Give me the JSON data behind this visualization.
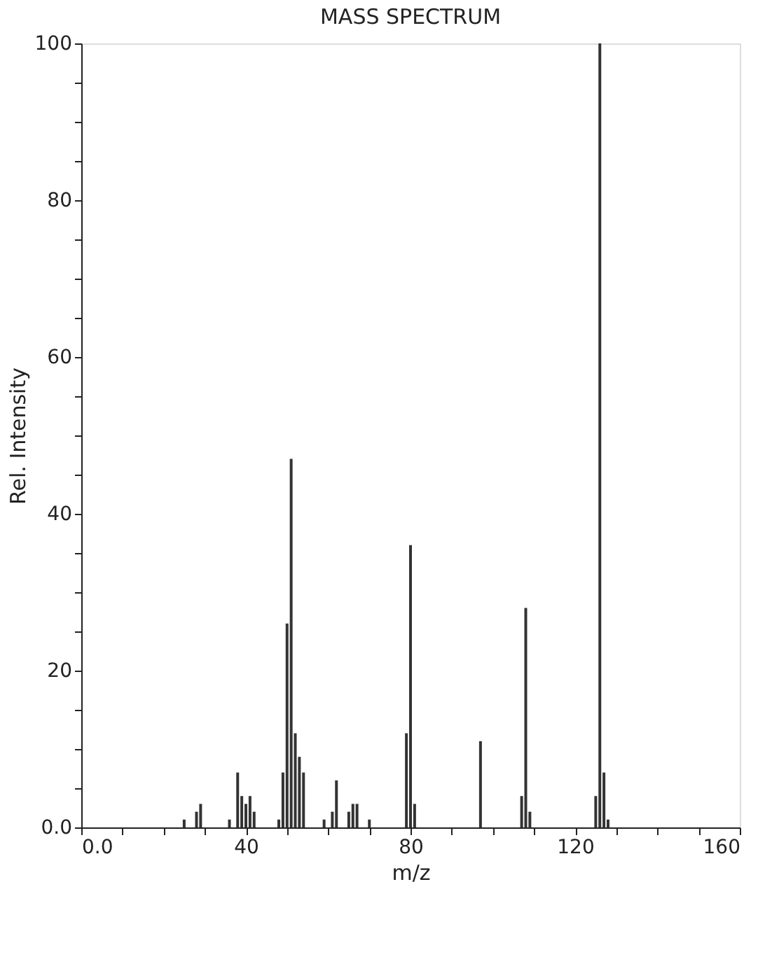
{
  "chart_data": {
    "type": "bar",
    "title": "MASS SPECTRUM",
    "xlabel": "m/z",
    "ylabel": "Rel. Intensity",
    "x": [
      25,
      28,
      29,
      36,
      38,
      39,
      40,
      41,
      42,
      48,
      49,
      50,
      51,
      52,
      53,
      54,
      59,
      61,
      62,
      65,
      66,
      67,
      70,
      79,
      80,
      81,
      97,
      107,
      108,
      109,
      125,
      126,
      127,
      128
    ],
    "series": [
      {
        "color": "#333333",
        "values": [
          1,
          2,
          3,
          1,
          7,
          4,
          3,
          4,
          2,
          1,
          7,
          26,
          47,
          12,
          9,
          7,
          1,
          2,
          6,
          2,
          3,
          3,
          1,
          12,
          36,
          3,
          11,
          4,
          28,
          2,
          4,
          100,
          7,
          1
        ]
      }
    ],
    "xlim": [
      0,
      160
    ],
    "xticks": [
      {
        "value": 0,
        "label": "0.0"
      },
      {
        "value": 10,
        "label": null
      },
      {
        "value": 20,
        "label": null
      },
      {
        "value": 30,
        "label": null
      },
      40,
      {
        "value": 50,
        "label": null
      },
      {
        "value": 60,
        "label": null
      },
      {
        "value": 70,
        "label": null
      },
      80,
      {
        "value": 90,
        "label": null
      },
      {
        "value": 100,
        "label": null
      },
      {
        "value": 110,
        "label": null
      },
      120,
      {
        "value": 130,
        "label": null
      },
      {
        "value": 140,
        "label": null
      },
      {
        "value": 150,
        "label": null
      },
      160
    ],
    "ylim": [
      0,
      100
    ],
    "yticks": [
      {
        "value": 0,
        "label": "0.0"
      },
      {
        "value": 5,
        "label": null
      },
      {
        "value": 10,
        "label": null
      },
      {
        "value": 15,
        "label": null
      },
      20,
      {
        "value": 25,
        "label": null
      },
      {
        "value": 30,
        "label": null
      },
      {
        "value": 35,
        "label": null
      },
      40,
      {
        "value": 45,
        "label": null
      },
      {
        "value": 50,
        "label": null
      },
      {
        "value": 55,
        "label": null
      },
      60,
      {
        "value": 65,
        "label": null
      },
      {
        "value": 70,
        "label": null
      },
      {
        "value": 75,
        "label": null
      },
      80,
      {
        "value": 85,
        "label": null
      },
      {
        "value": 90,
        "label": null
      },
      {
        "value": 95,
        "label": null
      },
      100
    ],
    "grid": false
  }
}
